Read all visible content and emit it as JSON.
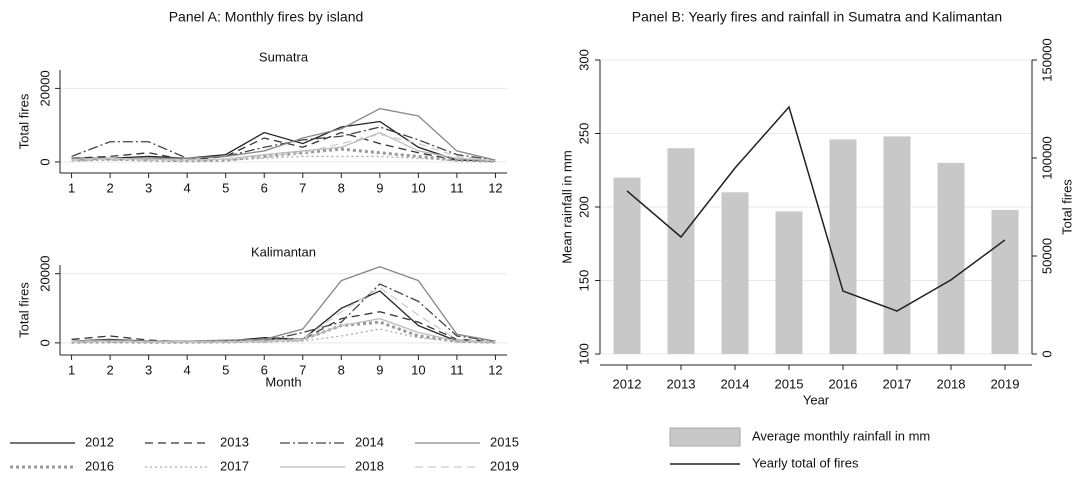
{
  "chart_data": [
    {
      "type": "line",
      "title": "Panel A: Monthly fires by island",
      "subtitle": "Sumatra",
      "ylabel": "Total fires",
      "x": [
        1,
        2,
        3,
        4,
        5,
        6,
        7,
        8,
        9,
        10,
        11,
        12
      ],
      "xlim": [
        0.7,
        12.3
      ],
      "xticks": [
        1,
        2,
        3,
        4,
        5,
        6,
        7,
        8,
        9,
        10,
        11,
        12
      ],
      "ylim": [
        -3000,
        25000
      ],
      "yticks": [
        0,
        20000
      ],
      "grid": true,
      "legend": "bottom",
      "series": [
        {
          "name": "2012",
          "color": "#222222",
          "style": "solid",
          "values": [
            1000,
            1000,
            1500,
            1000,
            2000,
            8000,
            5000,
            9500,
            11000,
            4000,
            500,
            300
          ]
        },
        {
          "name": "2013",
          "color": "#333333",
          "style": "dash",
          "values": [
            1000,
            1500,
            2500,
            500,
            1500,
            6500,
            4000,
            8000,
            5000,
            2500,
            500,
            200
          ]
        },
        {
          "name": "2014",
          "color": "#444444",
          "style": "dashdot",
          "values": [
            1500,
            5500,
            5500,
            1000,
            1500,
            4000,
            6000,
            7000,
            9500,
            6000,
            2000,
            500
          ]
        },
        {
          "name": "2015",
          "color": "#888888",
          "style": "solid",
          "values": [
            500,
            800,
            1000,
            1000,
            1500,
            3000,
            6500,
            9000,
            14500,
            12500,
            3000,
            500
          ]
        },
        {
          "name": "2016",
          "color": "#999999",
          "style": "thickdot",
          "values": [
            500,
            800,
            500,
            300,
            500,
            1500,
            2500,
            3500,
            2500,
            1500,
            500,
            200
          ]
        },
        {
          "name": "2017",
          "color": "#aaaaaa",
          "style": "dot",
          "values": [
            300,
            500,
            500,
            300,
            500,
            1000,
            1500,
            1500,
            1500,
            1000,
            300,
            100
          ]
        },
        {
          "name": "2018",
          "color": "#bbbbbb",
          "style": "solid",
          "values": [
            800,
            1000,
            800,
            500,
            800,
            2000,
            3000,
            4000,
            8000,
            3000,
            1000,
            300
          ]
        },
        {
          "name": "2019",
          "color": "#cccccc",
          "style": "dash",
          "values": [
            500,
            800,
            500,
            500,
            800,
            1500,
            2500,
            5000,
            7500,
            5000,
            1500,
            300
          ]
        }
      ]
    },
    {
      "type": "line",
      "subtitle": "Kalimantan",
      "ylabel": "Total fires",
      "xlabel": "Month",
      "x": [
        1,
        2,
        3,
        4,
        5,
        6,
        7,
        8,
        9,
        10,
        11,
        12
      ],
      "xlim": [
        0.7,
        12.3
      ],
      "xticks": [
        1,
        2,
        3,
        4,
        5,
        6,
        7,
        8,
        9,
        10,
        11,
        12
      ],
      "ylim": [
        -3500,
        22500
      ],
      "yticks": [
        0,
        20000
      ],
      "grid": true,
      "series": [
        {
          "name": "2012",
          "color": "#222222",
          "style": "solid",
          "values": [
            500,
            1000,
            500,
            300,
            500,
            1500,
            1000,
            10000,
            15000,
            5000,
            500,
            300
          ]
        },
        {
          "name": "2013",
          "color": "#333333",
          "style": "dash",
          "values": [
            1000,
            2000,
            800,
            300,
            500,
            800,
            1000,
            7000,
            9000,
            6000,
            1000,
            500
          ]
        },
        {
          "name": "2014",
          "color": "#444444",
          "style": "dashdot",
          "values": [
            500,
            500,
            500,
            300,
            500,
            500,
            3000,
            6000,
            17000,
            12000,
            2000,
            500
          ]
        },
        {
          "name": "2015",
          "color": "#888888",
          "style": "solid",
          "values": [
            500,
            800,
            500,
            500,
            800,
            1000,
            4000,
            18000,
            22000,
            18000,
            2500,
            500
          ]
        },
        {
          "name": "2016",
          "color": "#999999",
          "style": "thickdot",
          "values": [
            200,
            300,
            200,
            200,
            300,
            500,
            1000,
            5000,
            6000,
            2000,
            500,
            200
          ]
        },
        {
          "name": "2017",
          "color": "#aaaaaa",
          "style": "dot",
          "values": [
            100,
            200,
            200,
            100,
            200,
            300,
            500,
            2000,
            4000,
            1500,
            300,
            100
          ]
        },
        {
          "name": "2018",
          "color": "#bbbbbb",
          "style": "solid",
          "values": [
            500,
            500,
            300,
            300,
            300,
            500,
            1000,
            5000,
            7000,
            3000,
            500,
            200
          ]
        },
        {
          "name": "2019",
          "color": "#cccccc",
          "style": "dash",
          "values": [
            300,
            500,
            300,
            300,
            300,
            500,
            1000,
            9000,
            16000,
            8000,
            1000,
            300
          ]
        }
      ]
    },
    {
      "type": "combo",
      "title": "Panel B: Yearly fires and rainfall in Sumatra and Kalimantan",
      "xlabel": "Year",
      "ylabel": "Mean rainfall in mm",
      "y2label": "Total fires",
      "categories": [
        "2012",
        "2013",
        "2014",
        "2015",
        "2016",
        "2017",
        "2018",
        "2019"
      ],
      "ylim": [
        100,
        300
      ],
      "yticks": [
        100,
        150,
        200,
        250,
        300
      ],
      "y2lim": [
        0,
        150000
      ],
      "y2ticks": [
        0,
        50000,
        100000,
        150000
      ],
      "grid": true,
      "legend": "bottom",
      "series": [
        {
          "name": "Average monthly rainfall in mm",
          "type": "bar",
          "color": "#c8c8c8",
          "values": [
            220,
            240,
            210,
            197,
            246,
            248,
            230,
            198
          ]
        },
        {
          "name": "Yearly total of fires",
          "type": "line",
          "axis": "y2",
          "color": "#222222",
          "values": [
            83200,
            59700,
            94900,
            126000,
            32100,
            21900,
            37800,
            58200
          ]
        }
      ]
    }
  ]
}
